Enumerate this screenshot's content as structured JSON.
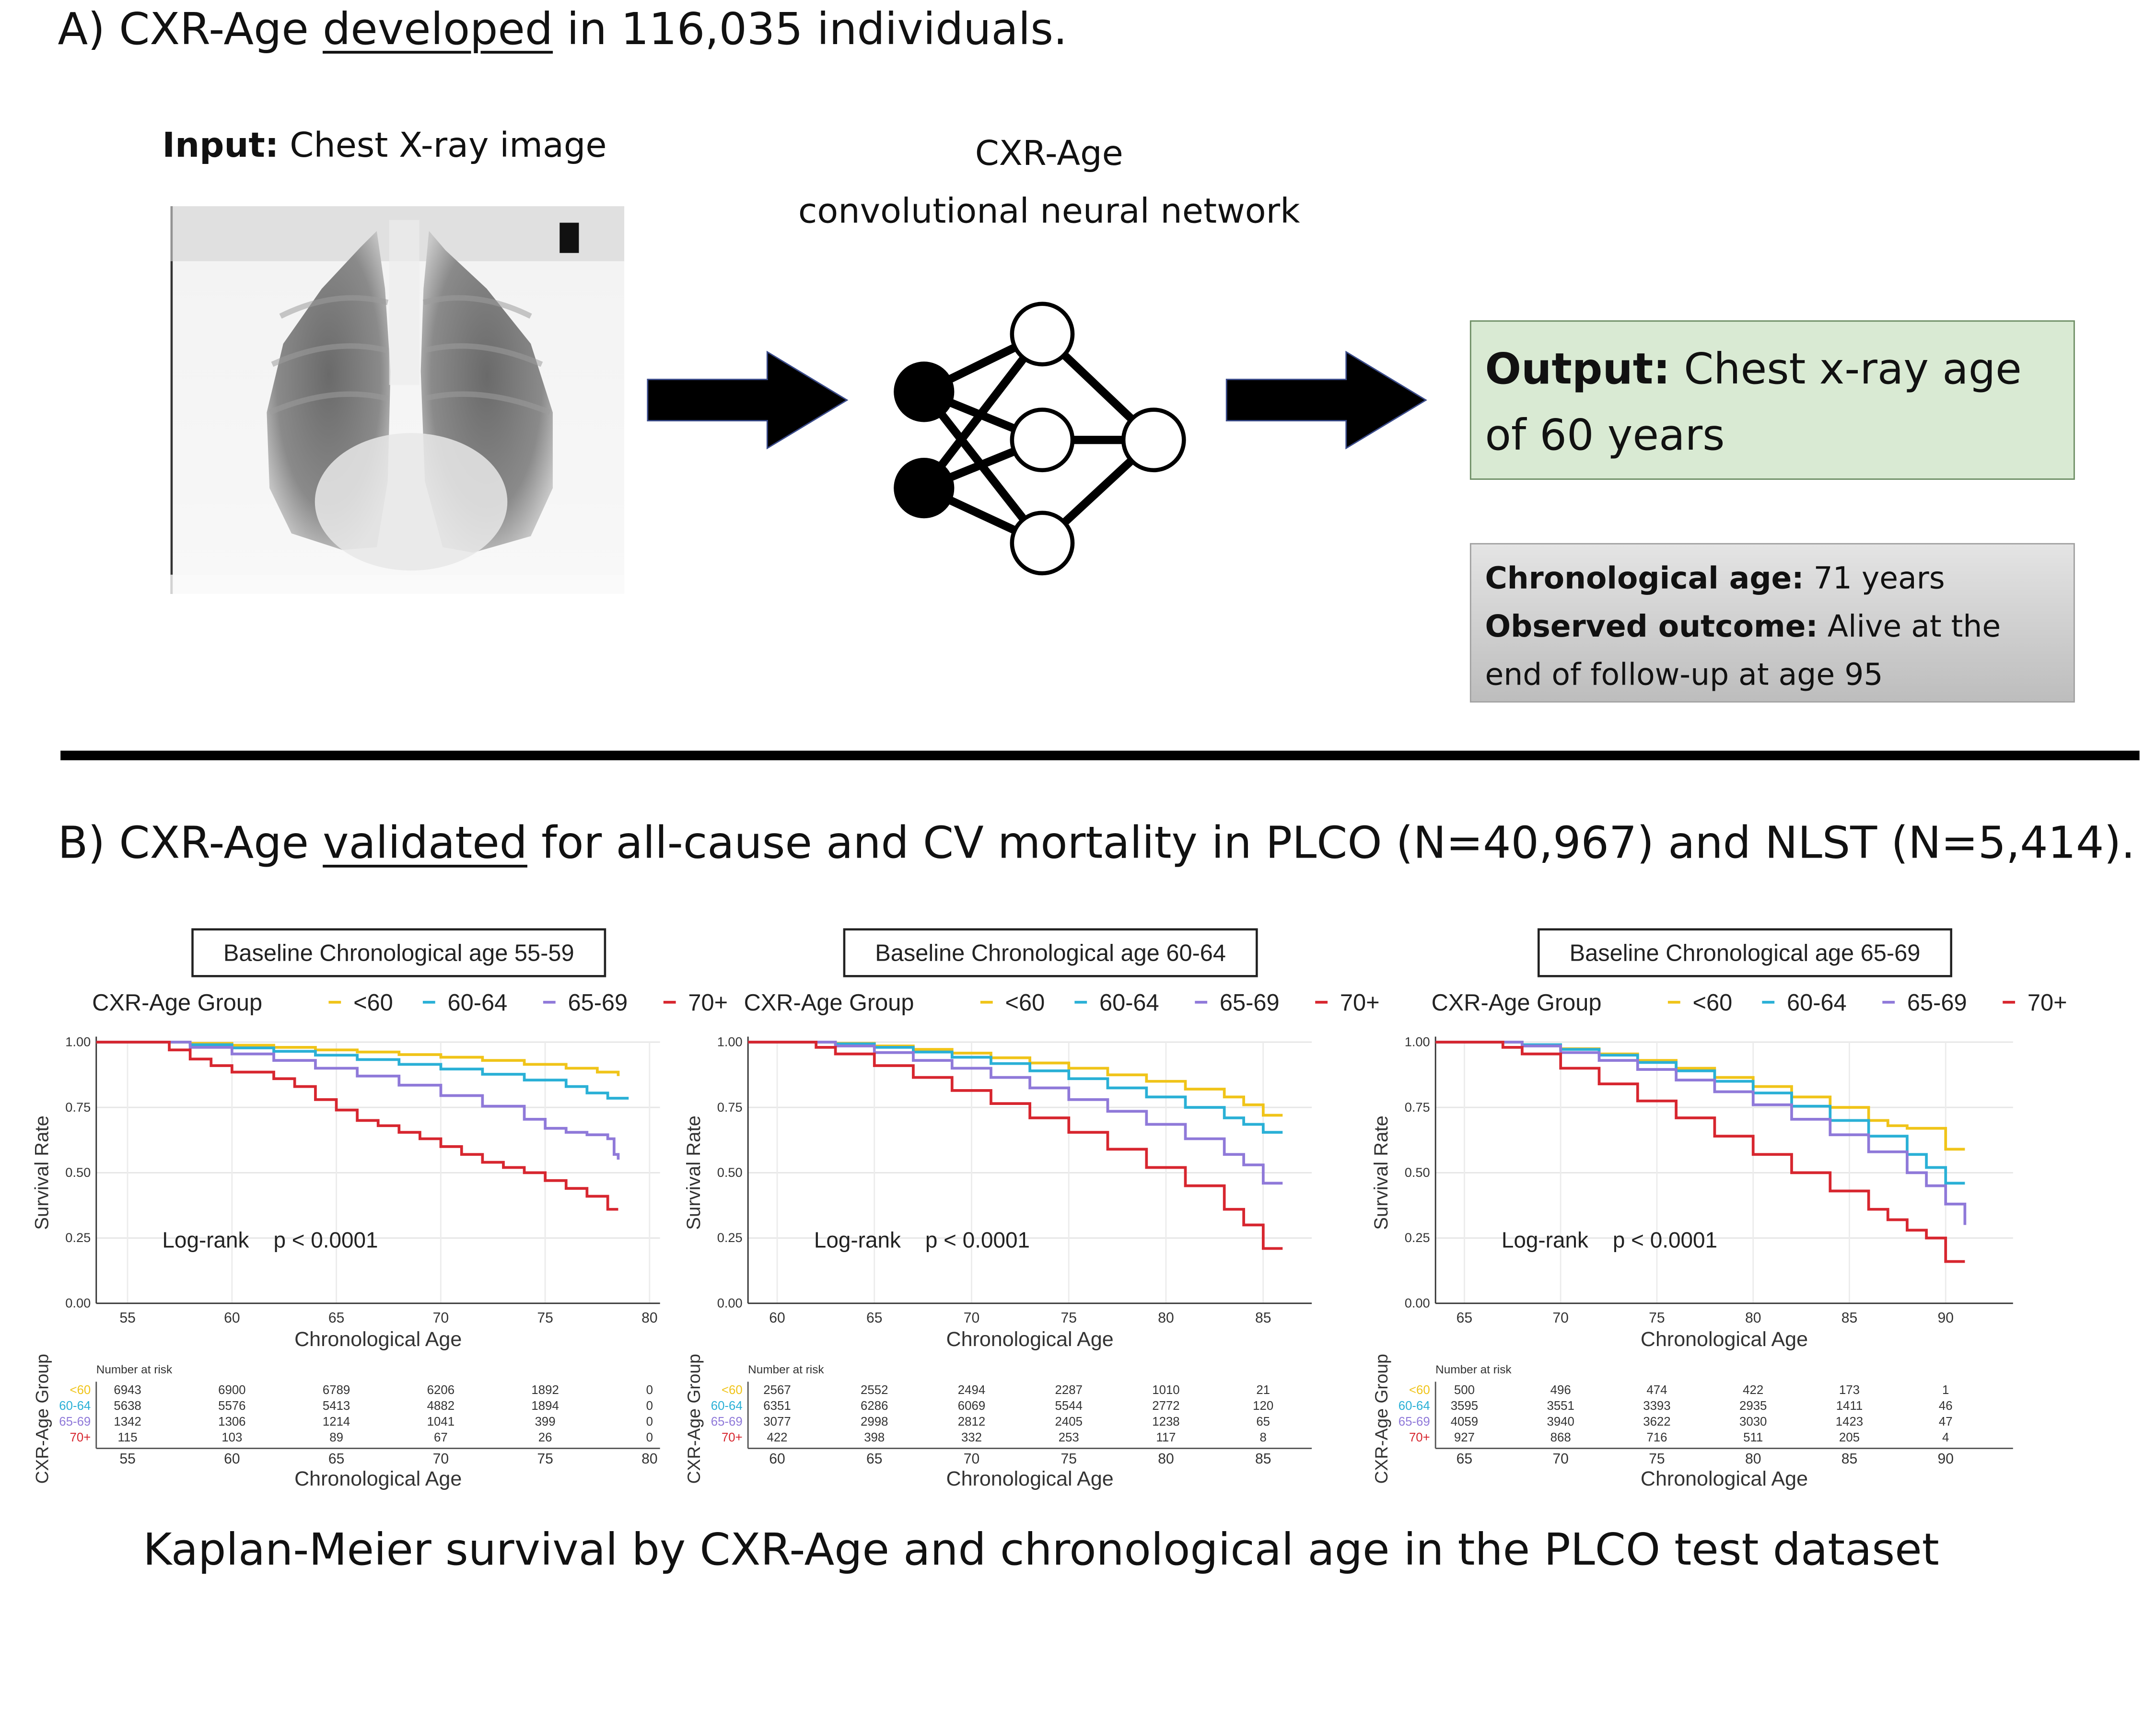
{
  "panel_a": {
    "title_pre": "A) CXR-Age ",
    "title_underlined": "developed",
    "title_post": " in 116,035 individuals.",
    "input_bold": "Input:",
    "input_text": " Chest X-ray image",
    "cnn_line1": "CXR-Age",
    "cnn_line2": "convolutional neural network",
    "output_bold": "Output:",
    "output_text": " Chest x-ray age of 60 years",
    "chronological_label": "Chronological age:",
    "chronological_value": " 71 years",
    "outcome_label": "Observed outcome:",
    "outcome_value": " Alive at the end of follow-up at age 95"
  },
  "panel_b": {
    "title_pre": "B) CXR-Age ",
    "title_underlined": "validated",
    "title_post": " for all-cause and CV mortality in PLCO (N=40,967) and NLST (N=5,414)."
  },
  "caption": "Kaplan-Meier survival by CXR-Age and chronological age in the PLCO test dataset",
  "colors": {
    "<60": "#f0c419",
    "60-64": "#2ab0d6",
    "65-69": "#8f79d9",
    "70+": "#d7262f"
  },
  "chart_data": [
    {
      "type": "line",
      "title": "Baseline Chronological age 55-59",
      "legend_title": "CXR-Age Group",
      "legend_items": [
        "<60",
        "60-64",
        "65-69",
        "70+"
      ],
      "xlabel": "Chronological Age",
      "ylabel": "Survival Rate",
      "xlim": [
        53.5,
        80.5
      ],
      "ylim": [
        0,
        1
      ],
      "xticks": [
        55,
        60,
        65,
        70,
        75,
        80
      ],
      "yticks": [
        "0.00",
        "0.25",
        "0.50",
        "0.75",
        "1.00"
      ],
      "annotation": "Log-rank    p < 0.0001",
      "series": [
        {
          "name": "<60",
          "x": [
            53.5,
            56,
            58,
            60,
            62,
            64,
            66,
            68,
            70,
            72,
            74,
            76,
            77.5,
            78.5
          ],
          "y": [
            1.0,
            1.0,
            0.995,
            0.988,
            0.98,
            0.97,
            0.962,
            0.952,
            0.942,
            0.93,
            0.915,
            0.9,
            0.885,
            0.87
          ]
        },
        {
          "name": "60-64",
          "x": [
            53.5,
            56,
            58,
            60,
            62,
            64,
            66,
            68,
            70,
            72,
            74,
            76,
            77,
            78,
            79
          ],
          "y": [
            1.0,
            1.0,
            0.99,
            0.978,
            0.965,
            0.95,
            0.933,
            0.915,
            0.897,
            0.877,
            0.855,
            0.83,
            0.805,
            0.785,
            0.785
          ]
        },
        {
          "name": "65-69",
          "x": [
            53.5,
            56,
            58,
            60,
            62,
            64,
            66,
            68,
            70,
            72,
            74,
            75,
            76,
            77,
            78,
            78.3,
            78.5
          ],
          "y": [
            1.0,
            1.0,
            0.98,
            0.955,
            0.93,
            0.9,
            0.87,
            0.835,
            0.795,
            0.755,
            0.705,
            0.67,
            0.655,
            0.645,
            0.63,
            0.57,
            0.55
          ]
        },
        {
          "name": "70+",
          "x": [
            53.5,
            56,
            57,
            58,
            59,
            60,
            62,
            63,
            64,
            65,
            66,
            67,
            68,
            69,
            70,
            71,
            72,
            73,
            74,
            75,
            76,
            77,
            78,
            78.5
          ],
          "y": [
            1.0,
            1.0,
            0.97,
            0.935,
            0.91,
            0.885,
            0.86,
            0.83,
            0.78,
            0.74,
            0.7,
            0.68,
            0.655,
            0.63,
            0.6,
            0.57,
            0.54,
            0.52,
            0.5,
            0.47,
            0.44,
            0.41,
            0.36,
            0.36
          ]
        }
      ],
      "risk_table": {
        "title": "Number at risk",
        "ylabel": "CXR-Age Group",
        "xlabel": "Chronological Age",
        "rows": [
          {
            "group": "<60",
            "values": [
              "6943",
              "6900",
              "6789",
              "6206",
              "1892",
              "0"
            ]
          },
          {
            "group": "60-64",
            "values": [
              "5638",
              "5576",
              "5413",
              "4882",
              "1894",
              "0"
            ]
          },
          {
            "group": "65-69",
            "values": [
              "1342",
              "1306",
              "1214",
              "1041",
              "399",
              "0"
            ]
          },
          {
            "group": "70+",
            "values": [
              "115",
              "103",
              "89",
              "67",
              "26",
              "0"
            ]
          }
        ]
      }
    },
    {
      "type": "line",
      "title": "Baseline Chronological age 60-64",
      "legend_title": "CXR-Age Group",
      "legend_items": [
        "<60",
        "60-64",
        "65-69",
        "70+"
      ],
      "xlabel": "Chronological Age",
      "ylabel": "Survival Rate",
      "xlim": [
        58.5,
        87.5
      ],
      "ylim": [
        0,
        1
      ],
      "xticks": [
        60,
        65,
        70,
        75,
        80,
        85
      ],
      "yticks": [
        "0.00",
        "0.25",
        "0.50",
        "0.75",
        "1.00"
      ],
      "annotation": "Log-rank    p < 0.0001",
      "series": [
        {
          "name": "<60",
          "x": [
            58.5,
            61,
            63,
            65,
            67,
            69,
            71,
            73,
            75,
            77,
            79,
            81,
            83,
            84,
            85,
            86
          ],
          "y": [
            1.0,
            1.0,
            0.995,
            0.985,
            0.972,
            0.958,
            0.94,
            0.92,
            0.9,
            0.875,
            0.85,
            0.82,
            0.79,
            0.76,
            0.72,
            0.72
          ]
        },
        {
          "name": "60-64",
          "x": [
            58.5,
            61,
            63,
            65,
            67,
            69,
            71,
            73,
            75,
            77,
            79,
            81,
            83,
            84,
            85,
            86
          ],
          "y": [
            1.0,
            1.0,
            0.993,
            0.98,
            0.962,
            0.942,
            0.918,
            0.89,
            0.86,
            0.825,
            0.79,
            0.75,
            0.71,
            0.685,
            0.655,
            0.655
          ]
        },
        {
          "name": "65-69",
          "x": [
            58.5,
            61,
            63,
            65,
            67,
            69,
            71,
            73,
            75,
            77,
            79,
            81,
            83,
            84,
            85,
            86
          ],
          "y": [
            1.0,
            1.0,
            0.985,
            0.96,
            0.93,
            0.9,
            0.865,
            0.825,
            0.78,
            0.735,
            0.685,
            0.63,
            0.57,
            0.53,
            0.46,
            0.46
          ]
        },
        {
          "name": "70+",
          "x": [
            58.5,
            61,
            62,
            63,
            65,
            67,
            69,
            71,
            73,
            75,
            77,
            79,
            81,
            83,
            84,
            85,
            86
          ],
          "y": [
            1.0,
            1.0,
            0.98,
            0.955,
            0.91,
            0.865,
            0.815,
            0.765,
            0.71,
            0.655,
            0.59,
            0.52,
            0.45,
            0.36,
            0.3,
            0.21,
            0.21
          ]
        }
      ],
      "risk_table": {
        "title": "Number at risk",
        "ylabel": "CXR-Age Group",
        "xlabel": "Chronological Age",
        "rows": [
          {
            "group": "<60",
            "values": [
              "2567",
              "2552",
              "2494",
              "2287",
              "1010",
              "21"
            ]
          },
          {
            "group": "60-64",
            "values": [
              "6351",
              "6286",
              "6069",
              "5544",
              "2772",
              "120"
            ]
          },
          {
            "group": "65-69",
            "values": [
              "3077",
              "2998",
              "2812",
              "2405",
              "1238",
              "65"
            ]
          },
          {
            "group": "70+",
            "values": [
              "422",
              "398",
              "332",
              "253",
              "117",
              "8"
            ]
          }
        ]
      }
    },
    {
      "type": "line",
      "title": "Baseline Chronological age 65-69",
      "legend_title": "CXR-Age Group",
      "legend_items": [
        "<60",
        "60-64",
        "65-69",
        "70+"
      ],
      "xlabel": "Chronological Age",
      "ylabel": "Survival Rate",
      "xlim": [
        63.5,
        93.5
      ],
      "ylim": [
        0,
        1
      ],
      "xticks": [
        65,
        70,
        75,
        80,
        85,
        90
      ],
      "yticks": [
        "0.00",
        "0.25",
        "0.50",
        "0.75",
        "1.00"
      ],
      "annotation": "Log-rank    p < 0.0001",
      "series": [
        {
          "name": "<60",
          "x": [
            63.5,
            66,
            68,
            70,
            72,
            74,
            76,
            78,
            80,
            82,
            84,
            86,
            87,
            88,
            89,
            90,
            91
          ],
          "y": [
            1.0,
            1.0,
            0.99,
            0.975,
            0.955,
            0.93,
            0.9,
            0.865,
            0.83,
            0.79,
            0.75,
            0.7,
            0.68,
            0.67,
            0.67,
            0.59,
            0.59
          ]
        },
        {
          "name": "60-64",
          "x": [
            63.5,
            66,
            68,
            70,
            72,
            74,
            76,
            78,
            80,
            82,
            84,
            86,
            88,
            89,
            90,
            91
          ],
          "y": [
            1.0,
            1.0,
            0.99,
            0.972,
            0.95,
            0.922,
            0.89,
            0.85,
            0.805,
            0.755,
            0.7,
            0.64,
            0.57,
            0.52,
            0.46,
            0.46
          ]
        },
        {
          "name": "65-69",
          "x": [
            63.5,
            66,
            68,
            70,
            72,
            74,
            76,
            78,
            80,
            82,
            84,
            86,
            88,
            89,
            90,
            91
          ],
          "y": [
            1.0,
            1.0,
            0.985,
            0.96,
            0.93,
            0.895,
            0.855,
            0.81,
            0.76,
            0.705,
            0.645,
            0.58,
            0.5,
            0.45,
            0.38,
            0.3
          ]
        },
        {
          "name": "70+",
          "x": [
            63.5,
            66,
            67,
            68,
            70,
            72,
            74,
            76,
            78,
            80,
            82,
            84,
            86,
            87,
            88,
            89,
            90,
            91
          ],
          "y": [
            1.0,
            1.0,
            0.98,
            0.955,
            0.9,
            0.84,
            0.775,
            0.71,
            0.64,
            0.57,
            0.5,
            0.43,
            0.36,
            0.32,
            0.28,
            0.25,
            0.16,
            0.16
          ]
        }
      ],
      "risk_table": {
        "title": "Number at risk",
        "ylabel": "CXR-Age Group",
        "xlabel": "Chronological Age",
        "rows": [
          {
            "group": "<60",
            "values": [
              "500",
              "496",
              "474",
              "422",
              "173",
              "1"
            ]
          },
          {
            "group": "60-64",
            "values": [
              "3595",
              "3551",
              "3393",
              "2935",
              "1411",
              "46"
            ]
          },
          {
            "group": "65-69",
            "values": [
              "4059",
              "3940",
              "3622",
              "3030",
              "1423",
              "47"
            ]
          },
          {
            "group": "70+",
            "values": [
              "927",
              "868",
              "716",
              "511",
              "205",
              "4"
            ]
          }
        ]
      }
    }
  ]
}
